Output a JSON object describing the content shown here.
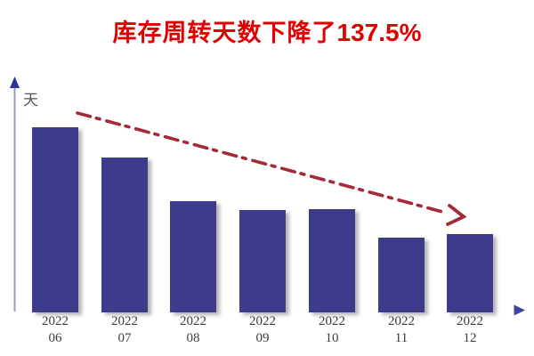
{
  "title": {
    "part1": "库存周转天数下降了",
    "part2": "137.5%",
    "color": "#e00000"
  },
  "chart_data": {
    "type": "bar",
    "title": "库存周转天数下降了137.5%",
    "ylabel": "天",
    "xlabel": "",
    "categories": [
      {
        "year": "2022",
        "month": "06"
      },
      {
        "year": "2022",
        "month": "07"
      },
      {
        "year": "2022",
        "month": "08"
      },
      {
        "year": "2022",
        "month": "09"
      },
      {
        "year": "2022",
        "month": "10"
      },
      {
        "year": "2022",
        "month": "11"
      },
      {
        "year": "2022",
        "month": "12"
      }
    ],
    "values": [
      208,
      174,
      125,
      115,
      116,
      84,
      88
    ],
    "value_note": "no y-axis tick labels shown; values are relative estimates in days",
    "ylim": [
      0,
      260
    ],
    "grid": false,
    "legend": false,
    "bar_color": "#3e3b8a",
    "axis_color_light": "#9a9cca",
    "axis_color_dark": "#3c409c",
    "label_color": "#3c3c3c",
    "trend_arrow": {
      "direction": "down-right",
      "style": "dash-dot",
      "color": "#a32a38"
    }
  }
}
